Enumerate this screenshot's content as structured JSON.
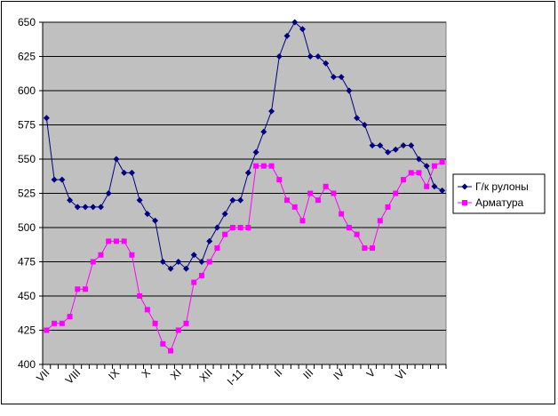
{
  "chart_data": {
    "type": "line",
    "title": "",
    "xlabel": "",
    "ylabel": "",
    "ylim": [
      400,
      650
    ],
    "yticks": [
      400,
      425,
      450,
      475,
      500,
      525,
      550,
      575,
      600,
      625,
      650
    ],
    "grid": "horizontal",
    "plot_background": "#C0C0C0",
    "legend_position": "right",
    "x_month_labels": [
      "VII",
      "VIII",
      "IX",
      "X",
      "XI",
      "XII",
      "I-11",
      "II",
      "III",
      "IV",
      "V",
      "VI"
    ],
    "x_month_label_index": [
      0,
      4,
      9,
      13,
      17,
      21,
      25,
      30,
      34,
      38,
      42,
      46
    ],
    "series": [
      {
        "name": "Г/к рулоны",
        "color": "#000080",
        "marker": "diamond",
        "values": [
          580,
          535,
          535,
          520,
          515,
          515,
          515,
          515,
          525,
          550,
          540,
          540,
          520,
          510,
          505,
          475,
          470,
          475,
          470,
          480,
          475,
          490,
          500,
          510,
          520,
          520,
          540,
          555,
          570,
          585,
          625,
          640,
          650,
          645,
          625,
          625,
          620,
          610,
          610,
          600,
          580,
          575,
          560,
          560,
          555,
          557,
          560,
          560,
          550,
          545,
          530,
          527
        ]
      },
      {
        "name": "Арматура",
        "color": "#FF00FF",
        "marker": "square",
        "values": [
          425,
          430,
          430,
          435,
          455,
          455,
          475,
          480,
          490,
          490,
          490,
          480,
          450,
          440,
          430,
          415,
          410,
          425,
          430,
          460,
          465,
          475,
          485,
          495,
          500,
          500,
          500,
          545,
          545,
          545,
          535,
          520,
          515,
          505,
          525,
          520,
          530,
          525,
          510,
          500,
          495,
          485,
          485,
          505,
          515,
          525,
          535,
          540,
          540,
          530,
          545,
          548
        ]
      }
    ]
  }
}
